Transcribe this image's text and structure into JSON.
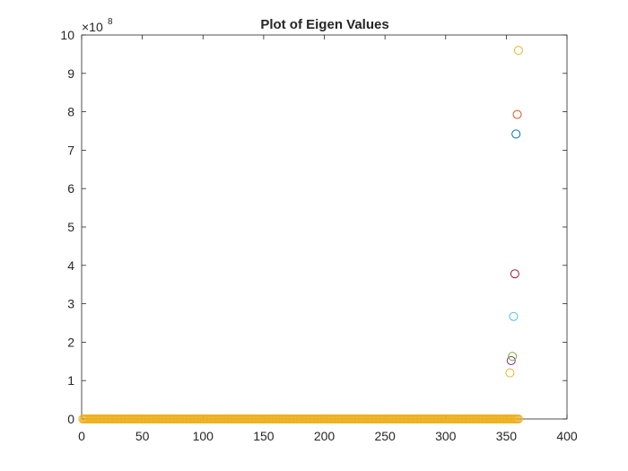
{
  "chart_data": {
    "type": "scatter",
    "title": "Plot of Eigen Values",
    "xlabel": "",
    "ylabel": "",
    "xlim": [
      0,
      400
    ],
    "ylim": [
      0,
      10
    ],
    "y_multiplier_label": "×10",
    "y_multiplier_exponent": "8",
    "xticks": [
      0,
      50,
      100,
      150,
      200,
      250,
      300,
      350,
      400
    ],
    "yticks": [
      0,
      1,
      2,
      3,
      4,
      5,
      6,
      7,
      8,
      9,
      10
    ],
    "grid": false,
    "marker": "open-circle",
    "baseline_series": {
      "x_start": 1,
      "x_end": 360,
      "y": 0,
      "color": "#EDB120"
    },
    "points": [
      {
        "x": 353,
        "y": 1.2,
        "color": "#EDB120"
      },
      {
        "x": 354,
        "y": 1.52,
        "color": "#7E2F8E"
      },
      {
        "x": 355,
        "y": 1.63,
        "color": "#77AC30"
      },
      {
        "x": 356,
        "y": 2.67,
        "color": "#4DBEEE"
      },
      {
        "x": 357,
        "y": 3.78,
        "color": "#A2142F"
      },
      {
        "x": 358,
        "y": 7.42,
        "color": "#0072BD"
      },
      {
        "x": 359,
        "y": 7.93,
        "color": "#D95319"
      },
      {
        "x": 360,
        "y": 9.6,
        "color": "#EDB120"
      }
    ]
  }
}
